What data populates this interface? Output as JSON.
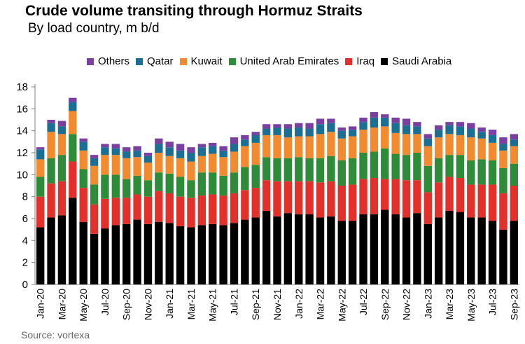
{
  "title": "Crude volume transiting through Hormuz Straits",
  "subtitle": "By load country, m b/d",
  "source": "Source: vortexa",
  "chart_data": {
    "type": "bar",
    "stacked": true,
    "categories": [
      "Jan-20",
      "Feb-20",
      "Mar-20",
      "Apr-20",
      "May-20",
      "Jun-20",
      "Jul-20",
      "Aug-20",
      "Sep-20",
      "Oct-20",
      "Nov-20",
      "Dec-20",
      "Jan-21",
      "Feb-21",
      "Mar-21",
      "Apr-21",
      "May-21",
      "Jun-21",
      "Jul-21",
      "Aug-21",
      "Sep-21",
      "Oct-21",
      "Nov-21",
      "Dec-21",
      "Jan-22",
      "Feb-22",
      "Mar-22",
      "Apr-22",
      "May-22",
      "Jun-22",
      "Jul-22",
      "Aug-22",
      "Sep-22",
      "Oct-22",
      "Nov-22",
      "Dec-22",
      "Jan-23",
      "Feb-23",
      "Mar-23",
      "Apr-23",
      "May-23",
      "Jun-23",
      "Jul-23",
      "Aug-23",
      "Sep-23"
    ],
    "tick_labels": [
      "Jan-20",
      "Mar-20",
      "May-20",
      "Jul-20",
      "Sep-20",
      "Nov-20",
      "Jan-21",
      "Mar-21",
      "May-21",
      "Jul-21",
      "Sep-21",
      "Nov-21",
      "Jan-22",
      "Mar-22",
      "May-22",
      "Jul-22",
      "Sep-22",
      "Nov-22",
      "Jan-23",
      "Mar-23",
      "May-23",
      "Jul-23",
      "Sep-23"
    ],
    "ylim": [
      0,
      18
    ],
    "yticks": [
      0,
      2,
      4,
      6,
      8,
      10,
      12,
      14,
      16,
      18
    ],
    "grid": false,
    "legend_position": "top",
    "series": [
      {
        "name": "Saudi Arabia",
        "color": "#000000",
        "values": [
          5.2,
          6.1,
          6.3,
          7.9,
          5.7,
          4.6,
          5.1,
          5.4,
          5.5,
          5.9,
          5.5,
          5.7,
          5.6,
          5.3,
          5.2,
          5.4,
          5.5,
          5.4,
          5.6,
          5.9,
          6.1,
          6.7,
          6.2,
          6.5,
          6.4,
          6.4,
          6.1,
          6.2,
          5.8,
          5.8,
          6.4,
          6.4,
          6.8,
          6.4,
          6.1,
          6.5,
          5.5,
          6.1,
          6.7,
          6.6,
          6.1,
          6.1,
          5.8,
          5.0,
          5.8
        ]
      },
      {
        "name": "Iraq",
        "color": "#e2302b",
        "values": [
          2.8,
          3.1,
          3.1,
          3.3,
          3.1,
          2.7,
          2.7,
          2.5,
          2.4,
          2.3,
          2.5,
          2.8,
          2.7,
          2.7,
          2.7,
          2.7,
          2.7,
          2.7,
          2.7,
          2.7,
          2.7,
          2.8,
          3.2,
          2.9,
          3.0,
          3.0,
          3.2,
          3.2,
          3.2,
          3.3,
          3.2,
          3.3,
          2.8,
          3.2,
          3.4,
          3.0,
          2.9,
          3.2,
          3.1,
          3.1,
          3.0,
          3.0,
          3.3,
          3.3,
          3.2
        ]
      },
      {
        "name": "United Arab Emirates",
        "color": "#2e8b3a",
        "values": [
          1.8,
          2.3,
          2.4,
          2.5,
          1.7,
          1.8,
          2.2,
          2.1,
          1.7,
          1.7,
          1.5,
          1.7,
          1.8,
          1.8,
          1.6,
          2.1,
          2.0,
          1.8,
          1.9,
          2.1,
          2.1,
          2.1,
          2.1,
          2.1,
          2.2,
          2.1,
          2.2,
          2.3,
          2.3,
          2.4,
          2.4,
          2.4,
          2.8,
          2.3,
          2.3,
          2.5,
          2.4,
          2.2,
          2.0,
          2.1,
          2.2,
          2.3,
          2.2,
          2.3,
          2.0
        ]
      },
      {
        "name": "Kuwait",
        "color": "#f28a30",
        "values": [
          1.6,
          2.4,
          1.9,
          2.1,
          1.7,
          1.7,
          1.8,
          1.8,
          1.9,
          1.7,
          1.6,
          1.8,
          1.6,
          1.7,
          1.7,
          1.5,
          1.7,
          1.7,
          1.9,
          1.9,
          2.0,
          2.0,
          2.1,
          1.9,
          1.9,
          2.0,
          2.2,
          2.2,
          2.0,
          2.0,
          2.1,
          2.2,
          2.0,
          1.9,
          1.9,
          1.7,
          1.8,
          1.9,
          1.9,
          1.8,
          2.1,
          1.9,
          1.6,
          1.6,
          1.6
        ]
      },
      {
        "name": "Qatar",
        "color": "#1a6f92",
        "values": [
          0.9,
          0.8,
          0.7,
          0.8,
          0.8,
          0.7,
          0.7,
          0.6,
          0.6,
          0.6,
          0.6,
          0.8,
          0.8,
          0.7,
          0.8,
          0.8,
          0.7,
          0.6,
          0.7,
          0.6,
          0.7,
          0.6,
          0.7,
          0.8,
          0.8,
          0.7,
          0.9,
          0.8,
          0.7,
          0.6,
          0.7,
          0.9,
          0.8,
          0.9,
          0.8,
          0.7,
          0.7,
          0.7,
          0.8,
          0.8,
          0.8,
          0.6,
          0.7,
          0.6,
          0.6
        ]
      },
      {
        "name": "Others",
        "color": "#7a3fa0",
        "values": [
          0.2,
          0.3,
          0.5,
          0.4,
          0.3,
          0.3,
          0.3,
          0.4,
          0.4,
          0.4,
          0.3,
          0.5,
          0.5,
          0.6,
          0.5,
          0.3,
          0.3,
          0.4,
          0.6,
          0.4,
          0.3,
          0.4,
          0.3,
          0.4,
          0.4,
          0.5,
          0.5,
          0.4,
          0.3,
          0.3,
          0.4,
          0.5,
          0.3,
          0.5,
          0.6,
          0.4,
          0.4,
          0.4,
          0.3,
          0.4,
          0.5,
          0.4,
          0.5,
          0.6,
          0.5
        ]
      }
    ]
  }
}
